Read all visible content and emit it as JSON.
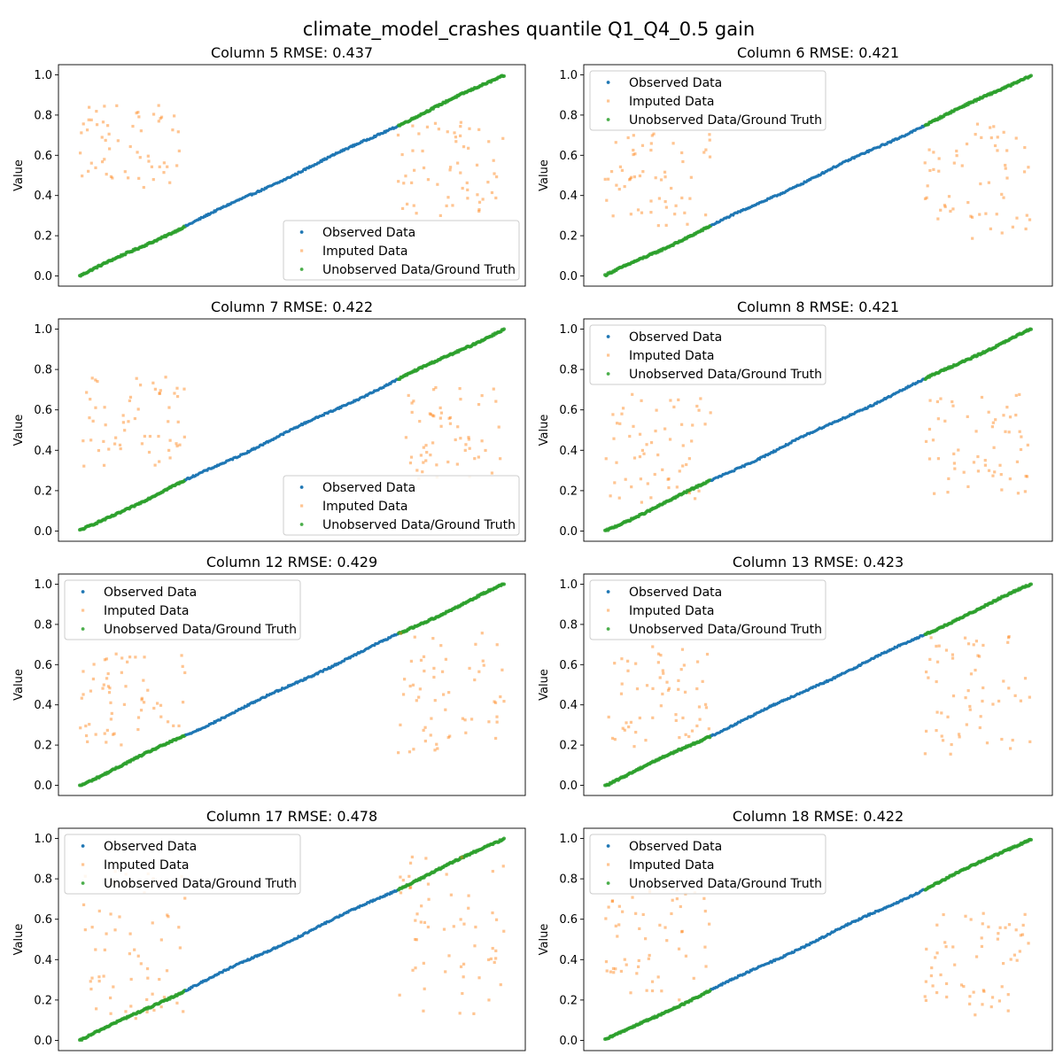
{
  "figure_title": "climate_model_crashes quantile Q1_Q4_0.5 gain",
  "colors": {
    "observed": "#1f77b4",
    "imputed": "#ff7f0e",
    "unobserved": "#2ca02c"
  },
  "chart_data": [
    {
      "type": "scatter",
      "title": "Column 5 RMSE: 0.437",
      "ylabel": "Value",
      "ylim": [
        0,
        1
      ],
      "yticks": [
        "0.0",
        "0.2",
        "0.4",
        "0.6",
        "0.8",
        "1.0"
      ],
      "legend_position": "lower-right",
      "series": [
        {
          "name": "Observed Data",
          "description": "sorted quantile values rising linearly from 0 to 1 across the full range"
        },
        {
          "name": "Imputed Data",
          "clusters": [
            {
              "x_range": [
                0.0,
                0.25
              ],
              "y_range": [
                0.42,
                0.85
              ]
            },
            {
              "x_range": [
                0.75,
                1.0
              ],
              "y_range": [
                0.3,
                0.78
              ]
            }
          ]
        },
        {
          "name": "Unobserved Data/Ground Truth",
          "segments": [
            [
              0.0,
              0.25
            ],
            [
              0.75,
              1.0
            ]
          ]
        }
      ]
    },
    {
      "type": "scatter",
      "title": "Column 6 RMSE: 0.421",
      "ylabel": "Value",
      "ylim": [
        0,
        1
      ],
      "yticks": [
        "0.0",
        "0.2",
        "0.4",
        "0.6",
        "0.8",
        "1.0"
      ],
      "legend_position": "upper-left",
      "series": [
        {
          "name": "Observed Data"
        },
        {
          "name": "Imputed Data",
          "clusters": [
            {
              "x_range": [
                0.0,
                0.25
              ],
              "y_range": [
                0.25,
                0.71
              ]
            },
            {
              "x_range": [
                0.75,
                1.0
              ],
              "y_range": [
                0.18,
                0.76
              ]
            }
          ]
        },
        {
          "name": "Unobserved Data/Ground Truth",
          "segments": [
            [
              0.0,
              0.25
            ],
            [
              0.75,
              1.0
            ]
          ]
        }
      ]
    },
    {
      "type": "scatter",
      "title": "Column 7 RMSE: 0.422",
      "ylabel": "Value",
      "ylim": [
        0,
        1
      ],
      "yticks": [
        "0.0",
        "0.2",
        "0.4",
        "0.6",
        "0.8",
        "1.0"
      ],
      "legend_position": "lower-right",
      "series": [
        {
          "name": "Observed Data"
        },
        {
          "name": "Imputed Data",
          "clusters": [
            {
              "x_range": [
                0.0,
                0.25
              ],
              "y_range": [
                0.32,
                0.77
              ]
            },
            {
              "x_range": [
                0.75,
                1.0
              ],
              "y_range": [
                0.25,
                0.72
              ]
            }
          ]
        },
        {
          "name": "Unobserved Data/Ground Truth",
          "segments": [
            [
              0.0,
              0.25
            ],
            [
              0.75,
              1.0
            ]
          ]
        }
      ]
    },
    {
      "type": "scatter",
      "title": "Column 8 RMSE: 0.421",
      "ylabel": "Value",
      "ylim": [
        0,
        1
      ],
      "yticks": [
        "0.0",
        "0.2",
        "0.4",
        "0.6",
        "0.8",
        "1.0"
      ],
      "legend_position": "upper-left",
      "series": [
        {
          "name": "Observed Data"
        },
        {
          "name": "Imputed Data",
          "clusters": [
            {
              "x_range": [
                0.0,
                0.25
              ],
              "y_range": [
                0.14,
                0.69
              ]
            },
            {
              "x_range": [
                0.75,
                1.0
              ],
              "y_range": [
                0.17,
                0.69
              ]
            }
          ]
        },
        {
          "name": "Unobserved Data/Ground Truth",
          "segments": [
            [
              0.0,
              0.25
            ],
            [
              0.75,
              1.0
            ]
          ]
        }
      ]
    },
    {
      "type": "scatter",
      "title": "Column 12 RMSE: 0.429",
      "ylabel": "Value",
      "ylim": [
        0,
        1
      ],
      "yticks": [
        "0.0",
        "0.2",
        "0.4",
        "0.6",
        "0.8",
        "1.0"
      ],
      "legend_position": "upper-left",
      "series": [
        {
          "name": "Observed Data"
        },
        {
          "name": "Imputed Data",
          "clusters": [
            {
              "x_range": [
                0.0,
                0.25
              ],
              "y_range": [
                0.2,
                0.66
              ]
            },
            {
              "x_range": [
                0.75,
                1.0
              ],
              "y_range": [
                0.15,
                0.76
              ]
            }
          ]
        },
        {
          "name": "Unobserved Data/Ground Truth",
          "segments": [
            [
              0.0,
              0.25
            ],
            [
              0.75,
              1.0
            ]
          ]
        }
      ]
    },
    {
      "type": "scatter",
      "title": "Column 13 RMSE: 0.423",
      "ylabel": "Value",
      "ylim": [
        0,
        1
      ],
      "yticks": [
        "0.0",
        "0.2",
        "0.4",
        "0.6",
        "0.8",
        "1.0"
      ],
      "legend_position": "upper-left",
      "series": [
        {
          "name": "Observed Data"
        },
        {
          "name": "Imputed Data",
          "clusters": [
            {
              "x_range": [
                0.0,
                0.25
              ],
              "y_range": [
                0.19,
                0.69
              ]
            },
            {
              "x_range": [
                0.75,
                1.0
              ],
              "y_range": [
                0.14,
                0.74
              ]
            }
          ]
        },
        {
          "name": "Unobserved Data/Ground Truth",
          "segments": [
            [
              0.0,
              0.25
            ],
            [
              0.75,
              1.0
            ]
          ]
        }
      ]
    },
    {
      "type": "scatter",
      "title": "Column 17 RMSE: 0.478",
      "ylabel": "Value",
      "ylim": [
        0,
        1
      ],
      "yticks": [
        "0.0",
        "0.2",
        "0.4",
        "0.6",
        "0.8",
        "1.0"
      ],
      "legend_position": "upper-left",
      "series": [
        {
          "name": "Observed Data"
        },
        {
          "name": "Imputed Data",
          "clusters": [
            {
              "x_range": [
                0.0,
                0.25
              ],
              "y_range": [
                0.1,
                0.85
              ]
            },
            {
              "x_range": [
                0.75,
                1.0
              ],
              "y_range": [
                0.1,
                0.91
              ]
            }
          ]
        },
        {
          "name": "Unobserved Data/Ground Truth",
          "segments": [
            [
              0.0,
              0.25
            ],
            [
              0.75,
              1.0
            ]
          ]
        }
      ]
    },
    {
      "type": "scatter",
      "title": "Column 18 RMSE: 0.422",
      "ylabel": "Value",
      "ylim": [
        0,
        1
      ],
      "yticks": [
        "0.0",
        "0.2",
        "0.4",
        "0.6",
        "0.8",
        "1.0"
      ],
      "legend_position": "upper-left",
      "series": [
        {
          "name": "Observed Data"
        },
        {
          "name": "Imputed Data",
          "clusters": [
            {
              "x_range": [
                0.0,
                0.25
              ],
              "y_range": [
                0.18,
                0.77
              ]
            },
            {
              "x_range": [
                0.75,
                1.0
              ],
              "y_range": [
                0.12,
                0.66
              ]
            }
          ]
        },
        {
          "name": "Unobserved Data/Ground Truth",
          "segments": [
            [
              0.0,
              0.25
            ],
            [
              0.75,
              1.0
            ]
          ]
        }
      ]
    }
  ]
}
